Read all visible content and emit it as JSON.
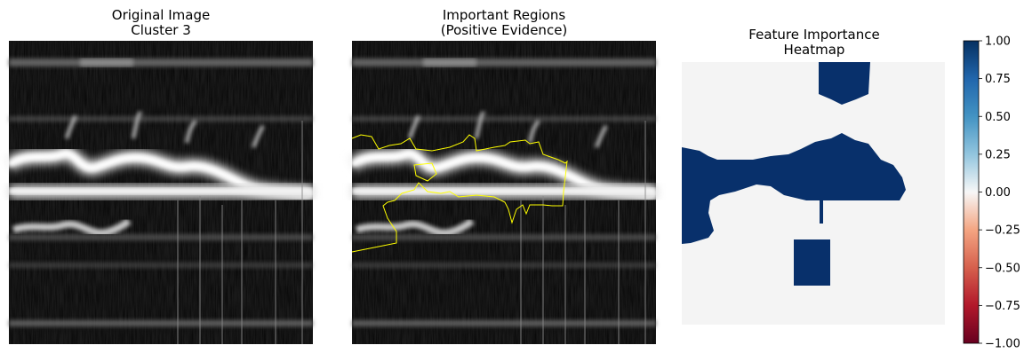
{
  "chart_data": [
    {
      "type": "image",
      "title_lines": [
        "Original Image",
        "Cluster 3"
      ],
      "axes_visible": false
    },
    {
      "type": "image",
      "title_lines": [
        "Important Regions",
        "(Positive Evidence)"
      ],
      "axes_visible": false,
      "overlay": {
        "description_color": "#ffff00"
      }
    },
    {
      "type": "heatmap",
      "title_lines": [
        "Feature Importance",
        "Heatmap"
      ],
      "axes_visible": false,
      "colormap": "RdBu",
      "colors": {
        "positive": "#08306b",
        "neutral": "#f5f5f5",
        "negative": "#67001f"
      },
      "colorbar": {
        "min": -1.0,
        "max": 1.0,
        "ticks": [
          1.0,
          0.75,
          0.5,
          0.25,
          0.0,
          -0.25,
          -0.5,
          -0.75,
          -1.0
        ],
        "tick_labels": [
          "1.00",
          "0.75",
          "0.50",
          "0.25",
          "0.00",
          "−0.25",
          "−0.50",
          "−0.75",
          "−1.00"
        ]
      }
    }
  ]
}
